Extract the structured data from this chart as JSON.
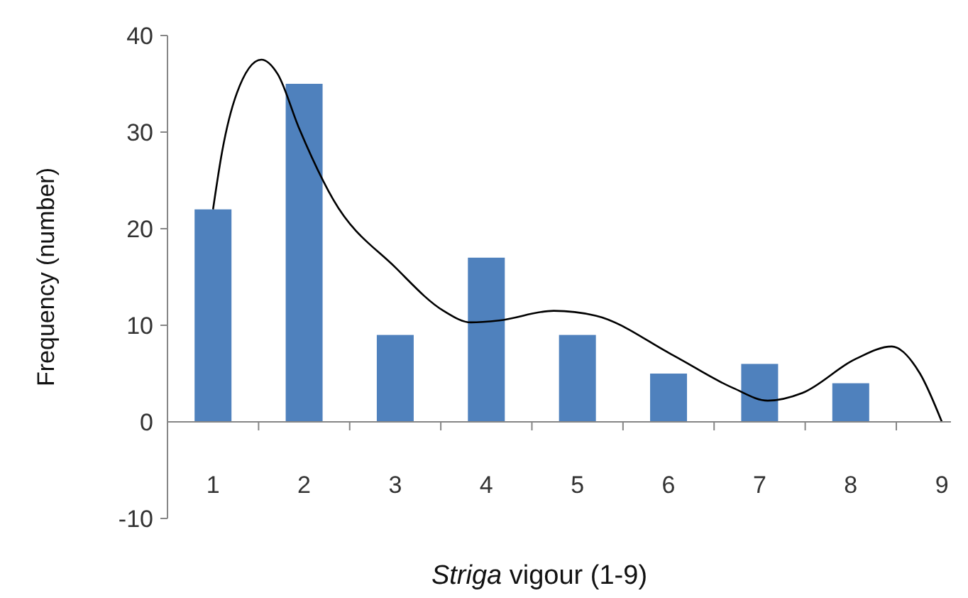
{
  "chart_data": {
    "type": "bar",
    "xlabel": "Striga vigour (1-9)",
    "ylabel": "Frequency (number)",
    "x": [
      1,
      2,
      3,
      4,
      5,
      6,
      7,
      8
    ],
    "xlim": [
      0.5,
      9.1
    ],
    "xticks": [
      1,
      {
        "value": 1.5,
        "label": null
      },
      2,
      {
        "value": 2.5,
        "label": null
      },
      3,
      {
        "value": 3.5,
        "label": null
      },
      4,
      {
        "value": 4.5,
        "label": null
      },
      5,
      {
        "value": 5.5,
        "label": null
      },
      6,
      {
        "value": 6.5,
        "label": null
      },
      7,
      {
        "value": 7.5,
        "label": null
      },
      8,
      {
        "value": 8.5,
        "label": null
      },
      9
    ],
    "ylim": [
      -10,
      40
    ],
    "yticks": [
      -10,
      0,
      10,
      20,
      30,
      40
    ],
    "grid": false,
    "series": [
      {
        "color": "#4f81bd",
        "values": [
          22,
          35,
          9,
          17,
          9,
          5,
          6,
          4
        ]
      },
      {
        "type": "line",
        "color": "#000000",
        "marker": "none",
        "x": [
          1.0,
          1.1,
          1.26,
          1.53,
          1.71,
          1.94,
          2.32,
          3.0,
          3.53,
          3.83,
          4.14,
          4.74,
          5.2,
          6.03,
          6.71,
          7.09,
          7.47,
          8.05,
          8.45,
          8.76,
          9.0
        ],
        "values": [
          22,
          28,
          34,
          37.5,
          36,
          30.5,
          23,
          16,
          11.5,
          10.3,
          10.5,
          11.5,
          11,
          7,
          3.5,
          2.2,
          3,
          6.5,
          7.8,
          5,
          0
        ]
      }
    ]
  }
}
